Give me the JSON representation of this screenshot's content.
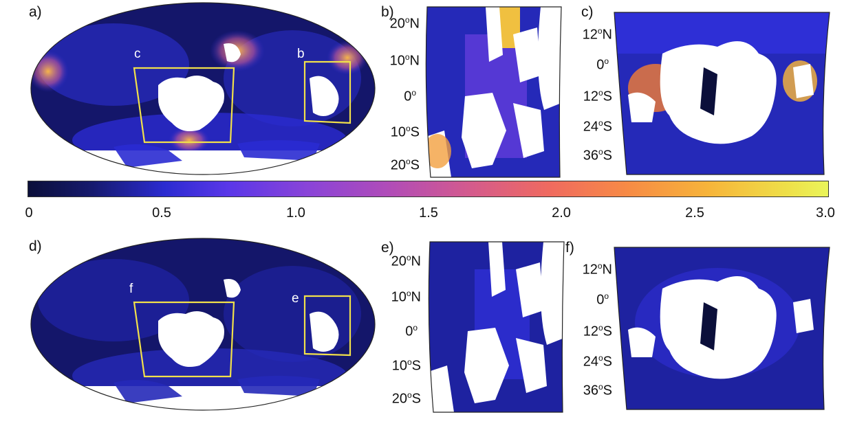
{
  "panels": {
    "a": "a)",
    "b": "b)",
    "c": "c)",
    "d": "d)",
    "e": "e)",
    "f": "f)"
  },
  "box_letters": {
    "c_top": "c",
    "b_top": "b",
    "f_bottom": "f",
    "e_bottom": "e"
  },
  "lat_small": [
    "20",
    "10",
    "0",
    "10",
    "20"
  ],
  "lat_small_hemi": [
    "N",
    "N",
    "",
    "S",
    "S"
  ],
  "lat_wide": [
    "12",
    "0",
    "12",
    "24",
    "36"
  ],
  "lat_wide_hemi": [
    "N",
    "",
    "S",
    "S",
    "S"
  ],
  "degree": "o",
  "colorbar": {
    "ticks": [
      "0",
      "0.5",
      "1.0",
      "1.5",
      "2.0",
      "2.5",
      "3.0"
    ],
    "min": 0,
    "max": 3.0
  },
  "colors": {
    "box": "#f2e14a",
    "ocean_dark": "#14166a",
    "mid": "#2a2bd1",
    "land": "#ffffff"
  }
}
